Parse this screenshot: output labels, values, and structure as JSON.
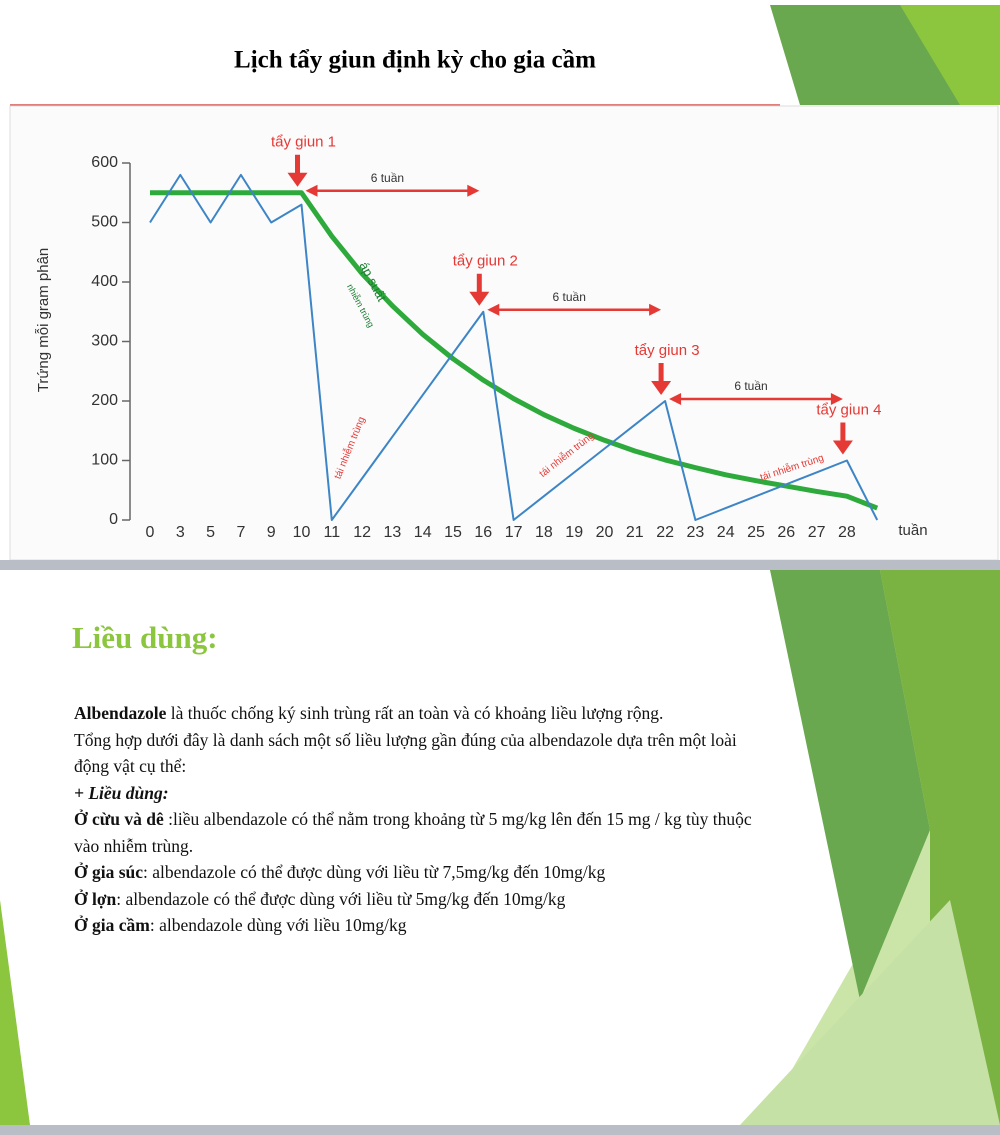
{
  "header": {
    "title": "Lịch tẩy giun định kỳ cho gia cầm"
  },
  "chart_data": {
    "type": "line",
    "y_label": "Trứng mỗi gram phân",
    "x_label": "tuần",
    "categories": [
      "0",
      "3",
      "5",
      "7",
      "9",
      "10",
      "11",
      "12",
      "13",
      "14",
      "15",
      "16",
      "17",
      "18",
      "19",
      "20",
      "21",
      "22",
      "23",
      "24",
      "25",
      "26",
      "27",
      "28",
      null
    ],
    "series": [
      {
        "color": "#3d85c6",
        "values": [
          500,
          580,
          500,
          580,
          500,
          530,
          0,
          70,
          140,
          210,
          280,
          350,
          0,
          40,
          80,
          120,
          160,
          200,
          0,
          20,
          40,
          60,
          80,
          100,
          0
        ]
      },
      {
        "color": "#2eaa3c",
        "values": [
          550,
          550,
          550,
          550,
          550,
          550,
          477,
          414,
          360,
          312,
          271,
          235,
          204,
          177,
          154,
          134,
          116,
          101,
          88,
          76,
          66,
          57,
          48,
          40,
          20
        ]
      }
    ],
    "ylim": [
      0,
      600
    ],
    "yticks": [
      0,
      100,
      200,
      300,
      400,
      500,
      600
    ],
    "annotations": {
      "doses": [
        "tẩy giun 1",
        "tẩy giun 2",
        "tẩy giun 3",
        "tẩy giun 4"
      ],
      "intervals": [
        "6 tuần",
        "6 tuần",
        "6 tuần"
      ],
      "pressure": [
        "áp suất",
        "nhiễm trùng"
      ],
      "reinfection": [
        "tái nhiễm trùng",
        "tái nhiễm trùng",
        "tái nhiễm trùng"
      ]
    }
  },
  "document": {
    "heading": "Liều dùng:",
    "paragraphs": [
      {
        "bold": "Albendazole",
        "text": " là thuốc chống ký sinh trùng rất an toàn và có khoảng liều lượng rộng."
      },
      {
        "text": "Tổng hợp dưới đây là danh sách một số liều lượng gần đúng của albendazole dựa trên một loài động vật cụ thể:"
      },
      {
        "bold_italic": "+ Liều dùng:"
      },
      {
        "bold": "Ở cừu và dê",
        "text": " :liều albendazole có thể nằm trong khoảng từ 5 mg/kg lên đến 15 mg / kg tùy thuộc vào nhiễm trùng."
      },
      {
        "bold": "Ở gia súc",
        "text": ": albendazole có thể được dùng với liều từ 7,5mg/kg đến 10mg/kg"
      },
      {
        "bold": "Ở lợn",
        "text": ": albendazole có thể được dùng với liều từ 5mg/kg đến 10mg/kg"
      },
      {
        "bold": "Ở gia cầm",
        "text": ": albendazole dùng với liều 10mg/kg"
      }
    ]
  }
}
